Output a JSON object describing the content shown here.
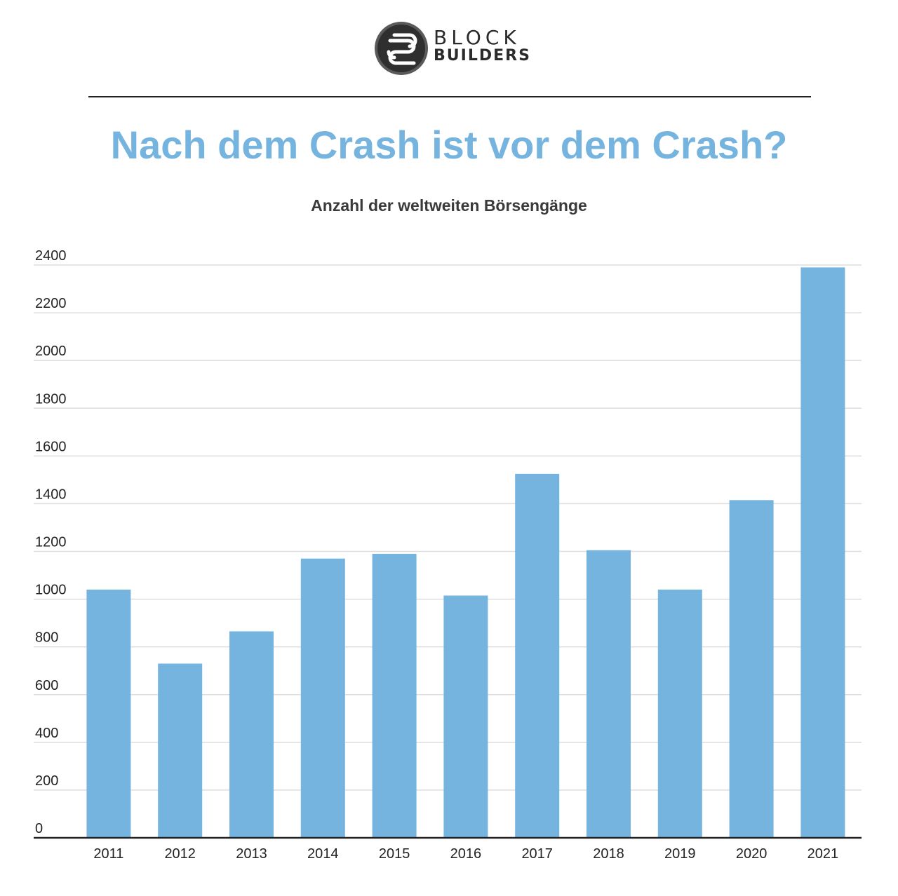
{
  "logo": {
    "line1": "BLOCK",
    "line2": "BUILDERS"
  },
  "title": "Nach dem Crash ist vor dem Crash?",
  "subtitle": "Anzahl der weltweiten Börsengänge",
  "colors": {
    "bar": "#76b4e0",
    "title": "#76b4e0",
    "grid": "#dddddd",
    "axis": "#222222"
  },
  "chart_data": {
    "type": "bar",
    "title": "Anzahl der weltweiten Börsengänge",
    "xlabel": "",
    "ylabel": "",
    "categories": [
      "2011",
      "2012",
      "2013",
      "2014",
      "2015",
      "2016",
      "2017",
      "2018",
      "2019",
      "2020",
      "2021"
    ],
    "values": [
      1040,
      730,
      865,
      1170,
      1190,
      1015,
      1525,
      1205,
      1040,
      1415,
      2390
    ],
    "ylim": [
      0,
      2400
    ],
    "yticks": [
      0,
      200,
      400,
      600,
      800,
      1000,
      1200,
      1400,
      1600,
      1800,
      2000,
      2200,
      2400
    ],
    "grid": true,
    "legend": "none"
  }
}
